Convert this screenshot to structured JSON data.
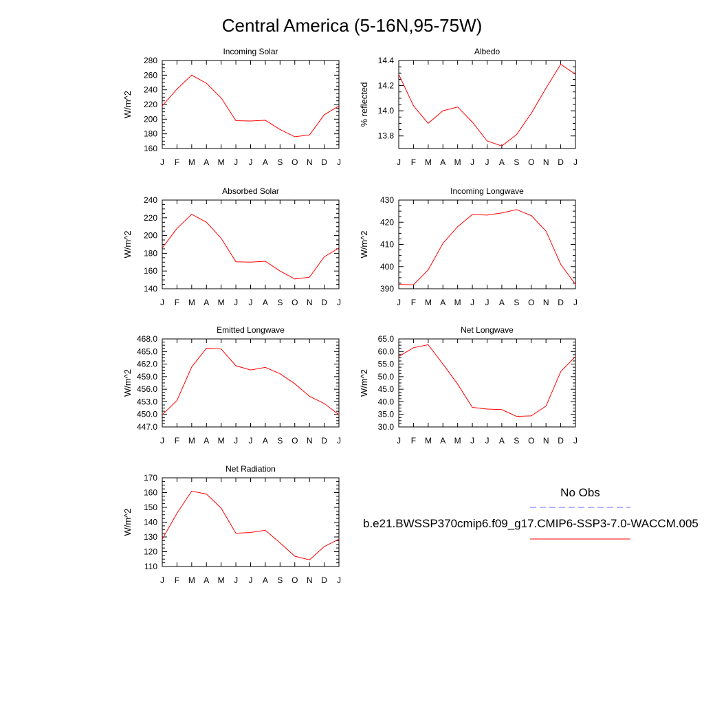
{
  "figure": {
    "title": "Central America (5-16N,95-75W)",
    "legend": {
      "obs_label": "No Obs",
      "obs_color": "#6666ff",
      "model_label": "b.e21.BWSSP370cmip6.f09_g17.CMIP6-SSP3-7.0-WACCM.005",
      "model_color": "#ff0000"
    }
  },
  "chart_data": [
    {
      "type": "line",
      "title": "Incoming Solar",
      "ylabel": "W/m^2",
      "x": [
        "J",
        "F",
        "M",
        "A",
        "M",
        "J",
        "J",
        "A",
        "S",
        "O",
        "N",
        "D",
        "J"
      ],
      "ylim": [
        160,
        280
      ],
      "yticks": [
        "160",
        "180",
        "200",
        "220",
        "240",
        "260",
        "280"
      ],
      "series": [
        {
          "color": "#ff0000",
          "values": [
            218,
            241,
            260,
            249,
            229,
            198,
            197.5,
            198.5,
            186,
            176,
            178.5,
            206,
            218
          ]
        }
      ]
    },
    {
      "type": "line",
      "title": "Albedo",
      "ylabel": "% reflected",
      "x": [
        "J",
        "F",
        "M",
        "A",
        "M",
        "J",
        "J",
        "A",
        "S",
        "O",
        "N",
        "D",
        "J"
      ],
      "ylim": [
        13.7,
        14.4
      ],
      "yticks": [
        "13.8",
        "14.0",
        "14.2",
        "14.4"
      ],
      "series": [
        {
          "color": "#ff0000",
          "values": [
            14.29,
            14.04,
            13.9,
            14.0,
            14.03,
            13.91,
            13.76,
            13.72,
            13.81,
            13.98,
            14.18,
            14.37,
            14.29
          ]
        }
      ]
    },
    {
      "type": "line",
      "title": "Absorbed Solar",
      "ylabel": "W/m^2",
      "x": [
        "J",
        "F",
        "M",
        "A",
        "M",
        "J",
        "J",
        "A",
        "S",
        "O",
        "N",
        "D",
        "J"
      ],
      "ylim": [
        140,
        240
      ],
      "yticks": [
        "140",
        "160",
        "180",
        "200",
        "220",
        "240"
      ],
      "series": [
        {
          "color": "#ff0000",
          "values": [
            186,
            208,
            224,
            215,
            197,
            170.5,
            170,
            171,
            160,
            151,
            153,
            176,
            186
          ]
        }
      ]
    },
    {
      "type": "line",
      "title": "Incoming Longwave",
      "ylabel": "W/m^2",
      "x": [
        "J",
        "F",
        "M",
        "A",
        "M",
        "J",
        "J",
        "A",
        "S",
        "O",
        "N",
        "D",
        "J"
      ],
      "ylim": [
        390,
        430
      ],
      "yticks": [
        "390",
        "400",
        "410",
        "420",
        "430"
      ],
      "series": [
        {
          "color": "#ff0000",
          "values": [
            392,
            391.8,
            398.5,
            410.5,
            418,
            423.5,
            423.2,
            424.2,
            425.7,
            423,
            416,
            401,
            392
          ]
        }
      ]
    },
    {
      "type": "line",
      "title": "Emitted Longwave",
      "ylabel": "W/m^2",
      "x": [
        "J",
        "F",
        "M",
        "A",
        "M",
        "J",
        "J",
        "A",
        "S",
        "O",
        "N",
        "D",
        "J"
      ],
      "ylim": [
        447,
        468
      ],
      "yticks": [
        "447.0",
        "450.0",
        "453.0",
        "456.0",
        "459.0",
        "462.0",
        "465.0",
        "468.0"
      ],
      "series": [
        {
          "color": "#ff0000",
          "values": [
            449.9,
            453.3,
            461.3,
            465.8,
            465.6,
            461.6,
            460.6,
            461.2,
            459.7,
            457.3,
            454.3,
            452.6,
            449.9
          ]
        }
      ]
    },
    {
      "type": "line",
      "title": "Net Longwave",
      "ylabel": "W/m^2",
      "x": [
        "J",
        "F",
        "M",
        "A",
        "M",
        "J",
        "J",
        "A",
        "S",
        "O",
        "N",
        "D",
        "J"
      ],
      "ylim": [
        30,
        65
      ],
      "yticks": [
        "30.0",
        "35.0",
        "40.0",
        "45.0",
        "50.0",
        "55.0",
        "60.0",
        "65.0"
      ],
      "series": [
        {
          "color": "#ff0000",
          "values": [
            58,
            61.5,
            62.7,
            55,
            47,
            37.8,
            37.1,
            36.9,
            34.2,
            34.4,
            38.3,
            52,
            58
          ]
        }
      ]
    },
    {
      "type": "line",
      "title": "Net Radiation",
      "ylabel": "W/m^2",
      "x": [
        "J",
        "F",
        "M",
        "A",
        "M",
        "J",
        "J",
        "A",
        "S",
        "O",
        "N",
        "D",
        "J"
      ],
      "ylim": [
        110,
        170
      ],
      "yticks": [
        "110",
        "120",
        "130",
        "140",
        "150",
        "160",
        "170"
      ],
      "series": [
        {
          "color": "#ff0000",
          "values": [
            128.5,
            146,
            161,
            159,
            149.5,
            132.5,
            133,
            134.5,
            126,
            117,
            114.5,
            123.5,
            128.5
          ]
        }
      ]
    }
  ]
}
